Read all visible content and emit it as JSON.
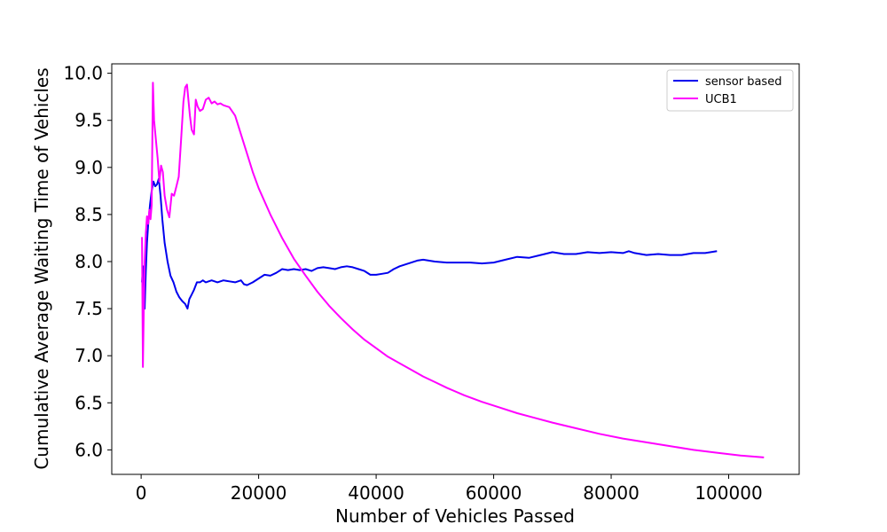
{
  "chart_data": {
    "type": "line",
    "title": "",
    "xlabel": "Number of Vehicles Passed",
    "ylabel": "Cumulative Average Waiting Time of Vehicles",
    "xlim": [
      -5000,
      112000
    ],
    "ylim": [
      5.74,
      10.1
    ],
    "xticks": [
      0,
      20000,
      40000,
      60000,
      80000,
      100000
    ],
    "xtick_labels": [
      "0",
      "20000",
      "40000",
      "60000",
      "80000",
      "100000"
    ],
    "yticks": [
      6.0,
      6.5,
      7.0,
      7.5,
      8.0,
      8.5,
      9.0,
      9.5,
      10.0
    ],
    "ytick_labels": [
      "6.0",
      "6.5",
      "7.0",
      "7.5",
      "8.0",
      "8.5",
      "9.0",
      "9.5",
      "10.0"
    ],
    "grid": false,
    "legend_position": "top-right",
    "series": [
      {
        "name": "sensor based",
        "color": "#0000ee",
        "x": [
          150,
          300,
          450,
          600,
          800,
          1000,
          1200,
          1500,
          1800,
          2100,
          2400,
          2700,
          3000,
          3300,
          3600,
          4000,
          4500,
          5000,
          5500,
          6000,
          6500,
          7000,
          7500,
          7900,
          8200,
          8600,
          9000,
          9500,
          10000,
          10500,
          11000,
          12000,
          13000,
          14000,
          15000,
          16000,
          17000,
          17500,
          18000,
          19000,
          20000,
          21000,
          22000,
          23000,
          24000,
          25000,
          26000,
          27000,
          28000,
          29000,
          30000,
          31000,
          32000,
          33000,
          34000,
          35000,
          36000,
          37000,
          38000,
          39000,
          40000,
          41000,
          42000,
          43000,
          44000,
          45000,
          46000,
          47000,
          48000,
          50000,
          52000,
          54000,
          56000,
          58000,
          60000,
          62000,
          64000,
          66000,
          68000,
          70000,
          72000,
          74000,
          76000,
          78000,
          80000,
          82000,
          83000,
          84000,
          86000,
          88000,
          90000,
          92000,
          94000,
          96000,
          98000
        ],
        "y": [
          7.78,
          7.95,
          7.65,
          7.5,
          7.9,
          8.2,
          8.4,
          8.6,
          8.75,
          8.85,
          8.8,
          8.82,
          8.88,
          8.7,
          8.45,
          8.2,
          8.0,
          7.85,
          7.78,
          7.68,
          7.62,
          7.58,
          7.55,
          7.5,
          7.6,
          7.65,
          7.7,
          7.78,
          7.78,
          7.8,
          7.78,
          7.8,
          7.78,
          7.8,
          7.79,
          7.78,
          7.8,
          7.76,
          7.75,
          7.78,
          7.82,
          7.86,
          7.85,
          7.88,
          7.92,
          7.91,
          7.92,
          7.91,
          7.92,
          7.9,
          7.93,
          7.94,
          7.93,
          7.92,
          7.94,
          7.95,
          7.94,
          7.92,
          7.9,
          7.86,
          7.86,
          7.87,
          7.88,
          7.92,
          7.95,
          7.97,
          7.99,
          8.01,
          8.02,
          8.0,
          7.99,
          7.99,
          7.99,
          7.98,
          7.99,
          8.02,
          8.05,
          8.04,
          8.07,
          8.1,
          8.08,
          8.08,
          8.1,
          8.09,
          8.1,
          8.09,
          8.11,
          8.09,
          8.07,
          8.08,
          8.07,
          8.07,
          8.09,
          8.09,
          8.11
        ]
      },
      {
        "name": "UCB1",
        "color": "#ff00ff",
        "x": [
          150,
          300,
          450,
          600,
          800,
          1000,
          1200,
          1400,
          1600,
          1800,
          2000,
          2200,
          2500,
          2800,
          3100,
          3400,
          3700,
          4000,
          4400,
          4800,
          5200,
          5600,
          6000,
          6400,
          6800,
          7200,
          7500,
          7800,
          8000,
          8300,
          8600,
          9000,
          9300,
          9600,
          10000,
          10500,
          11000,
          11500,
          12000,
          12500,
          13000,
          13500,
          14000,
          15000,
          16000,
          17000,
          18000,
          19000,
          20000,
          22000,
          24000,
          26000,
          28000,
          30000,
          32000,
          34000,
          36000,
          38000,
          40000,
          42000,
          44000,
          46000,
          48000,
          50000,
          52000,
          55000,
          58000,
          61000,
          64000,
          67000,
          70000,
          74000,
          78000,
          82000,
          86000,
          90000,
          94000,
          98000,
          102000,
          106000
        ],
        "y": [
          8.26,
          6.88,
          7.5,
          8.0,
          8.3,
          8.48,
          8.4,
          8.55,
          8.45,
          8.6,
          9.9,
          9.5,
          9.3,
          9.1,
          8.85,
          9.02,
          8.95,
          8.7,
          8.55,
          8.47,
          8.72,
          8.7,
          8.8,
          8.9,
          9.3,
          9.7,
          9.85,
          9.88,
          9.75,
          9.55,
          9.4,
          9.35,
          9.72,
          9.65,
          9.6,
          9.62,
          9.72,
          9.74,
          9.68,
          9.7,
          9.67,
          9.68,
          9.66,
          9.64,
          9.55,
          9.35,
          9.15,
          8.95,
          8.78,
          8.5,
          8.25,
          8.03,
          7.85,
          7.68,
          7.53,
          7.4,
          7.28,
          7.17,
          7.08,
          6.99,
          6.92,
          6.85,
          6.78,
          6.72,
          6.66,
          6.58,
          6.51,
          6.45,
          6.39,
          6.34,
          6.29,
          6.23,
          6.17,
          6.12,
          6.08,
          6.04,
          6.0,
          5.97,
          5.94,
          5.92
        ]
      }
    ]
  }
}
